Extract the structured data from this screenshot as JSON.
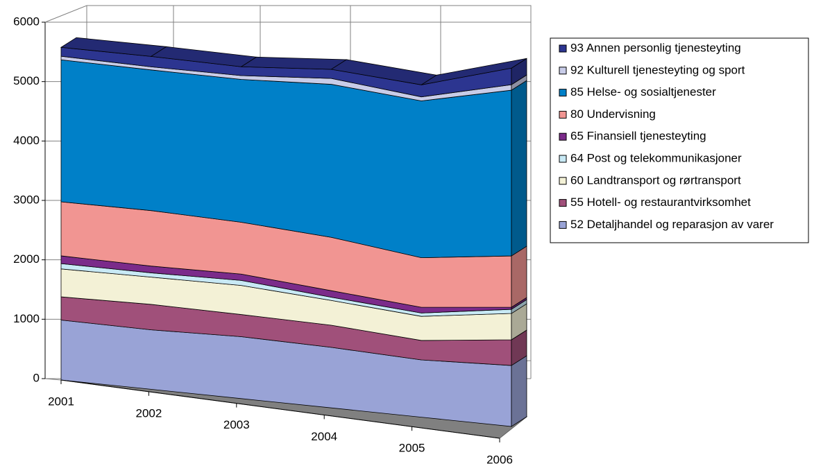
{
  "chart_data": {
    "type": "area3d",
    "categories": [
      "2001",
      "2002",
      "2003",
      "2004",
      "2005",
      "2006"
    ],
    "ylim": [
      0,
      6000
    ],
    "yticks": [
      0,
      1000,
      2000,
      3000,
      4000,
      5000,
      6000
    ],
    "grid": true,
    "series": [
      {
        "name": "52 Detaljhandel og reparasjon av varer",
        "color": "#99a3d6",
        "values": [
          1010,
          970,
          980,
          930,
          855,
          885
        ]
      },
      {
        "name": "55 Hotell- og restaurantvirksomhet",
        "color": "#a0507a",
        "values": [
          390,
          415,
          350,
          340,
          290,
          373
        ]
      },
      {
        "name": "60 Landtransport og rørtransport",
        "color": "#f3f1d6",
        "values": [
          470,
          445,
          460,
          380,
          360,
          382
        ]
      },
      {
        "name": "64 Post og telekommunikasjoner",
        "color": "#c8e9f5",
        "values": [
          90,
          70,
          80,
          50,
          50,
          60
        ]
      },
      {
        "name": "65 Finansiell tjenesteyting",
        "color": "#7b2b8a",
        "values": [
          130,
          110,
          100,
          100,
          85,
          30
        ]
      },
      {
        "name": "80 Undervisning",
        "color": "#f19592",
        "values": [
          910,
          905,
          820,
          820,
          740,
          745
        ]
      },
      {
        "name": "85 Helse- og sosialtjenester",
        "color": "#0080c8",
        "values": [
          2390,
          2295,
          2260,
          2350,
          2340,
          2405
        ]
      },
      {
        "name": "92 Kulturell tjenesteyting og sport",
        "color": "#c8cce8",
        "values": [
          60,
          50,
          60,
          90,
          60,
          80
        ]
      },
      {
        "name": "93 Annen personlig tjenesteyting",
        "color": "#2c3590",
        "values": [
          150,
          170,
          140,
          140,
          180,
          240
        ]
      }
    ]
  }
}
